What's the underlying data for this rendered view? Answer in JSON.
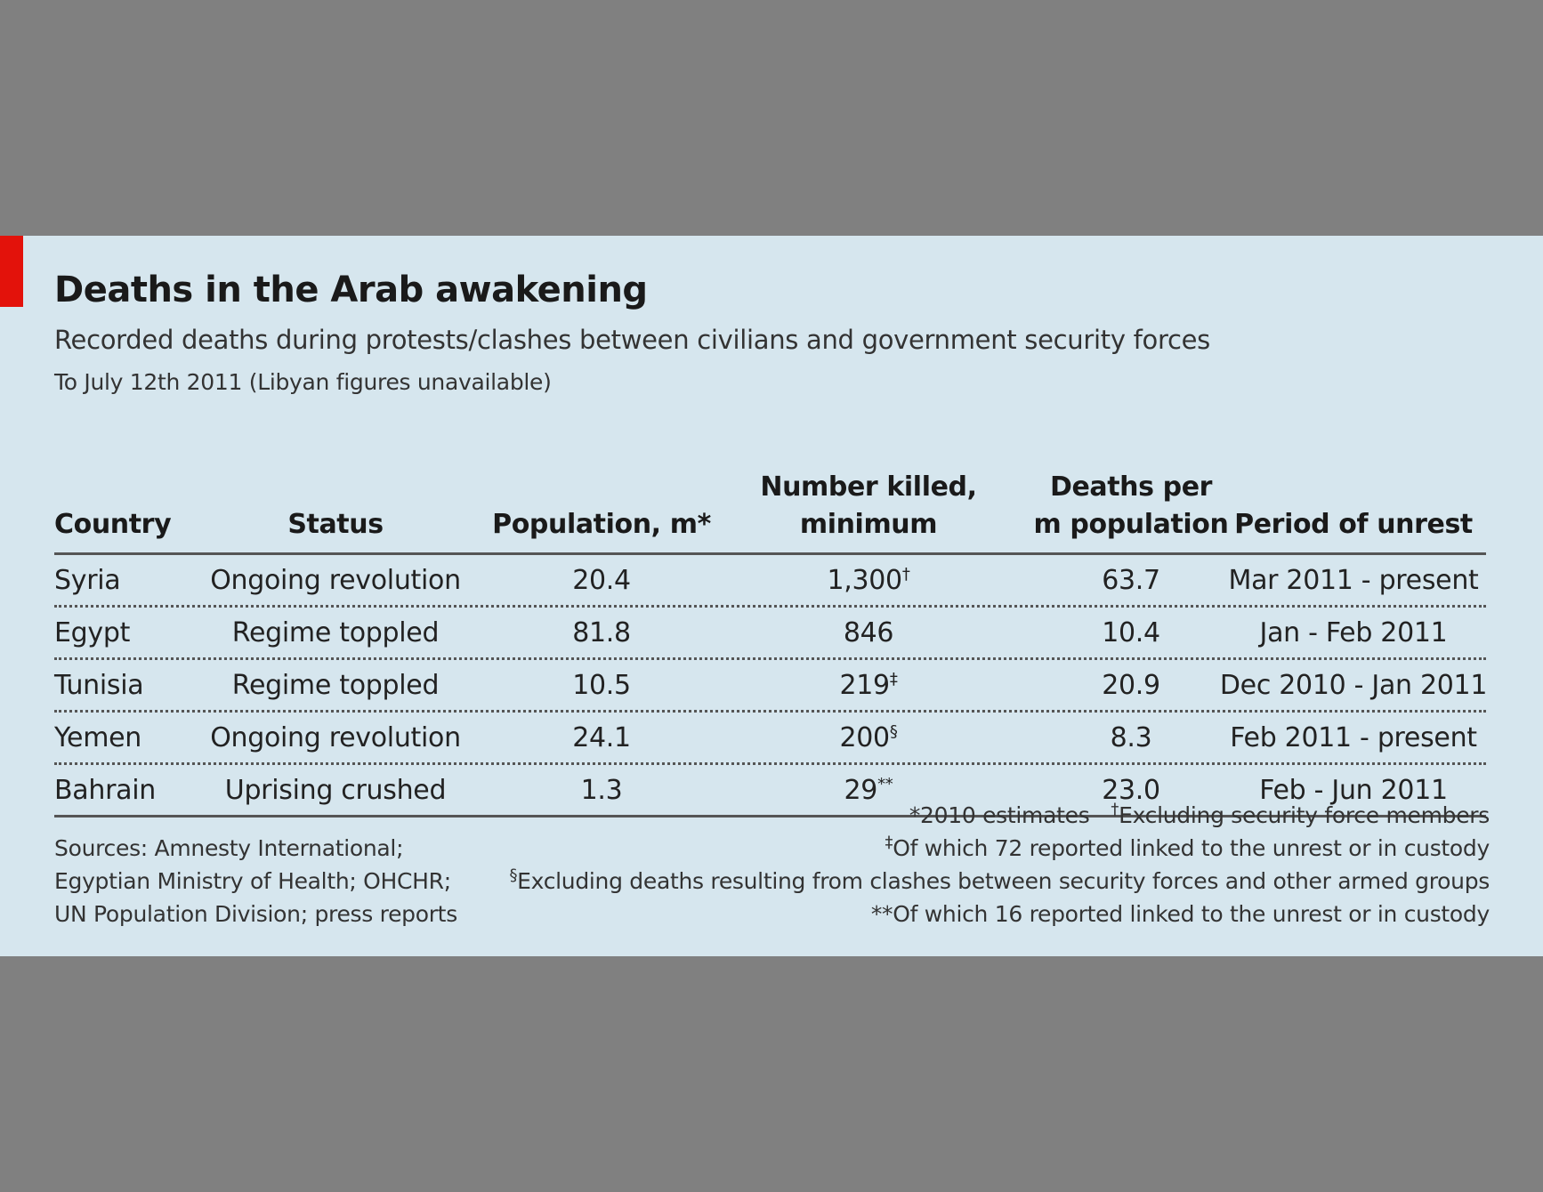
{
  "title": "Deaths in the Arab awakening",
  "subtitle": "Recorded deaths during protests/clashes between civilians and government security forces",
  "note": "To July 12th 2011 (Libyan figures unavailable)",
  "chart_data": {
    "type": "table",
    "columns": [
      "Country",
      "Status",
      "Population, m*",
      "Number killed, minimum",
      "Deaths per m population",
      "Period of unrest"
    ],
    "header_lines": {
      "killed": [
        "Number killed,",
        "minimum"
      ],
      "dpm": [
        "Deaths per",
        "m population"
      ]
    },
    "rows": [
      {
        "country": "Syria",
        "status": "Ongoing revolution",
        "population": "20.4",
        "killed": "1,300",
        "killed_mark": "†",
        "deaths_per_m": "63.7",
        "period": "Mar 2011 - present"
      },
      {
        "country": "Egypt",
        "status": "Regime toppled",
        "population": "81.8",
        "killed": "846",
        "killed_mark": "",
        "deaths_per_m": "10.4",
        "period": "Jan - Feb 2011"
      },
      {
        "country": "Tunisia",
        "status": "Regime toppled",
        "population": "10.5",
        "killed": "219",
        "killed_mark": "‡",
        "deaths_per_m": "20.9",
        "period": "Dec 2010 - Jan 2011"
      },
      {
        "country": "Yemen",
        "status": "Ongoing revolution",
        "population": "24.1",
        "killed": "200",
        "killed_mark": "§",
        "deaths_per_m": "8.3",
        "period": "Feb 2011 - present"
      },
      {
        "country": "Bahrain",
        "status": "Uprising crushed",
        "population": "1.3",
        "killed": "29",
        "killed_mark": "**",
        "deaths_per_m": "23.0",
        "period": "Feb - Jun 2011"
      }
    ]
  },
  "sources": [
    "Sources: Amnesty International;",
    "Egyptian Ministry of Health; OHCHR;",
    "UN Population Division; press reports"
  ],
  "footnotes": {
    "estimates": "*2010 estimates",
    "dagger_mark": "†",
    "dagger": "Excluding security force members",
    "ddagger_mark": "‡",
    "ddagger": "Of which 72 reported linked to the unrest or in custody",
    "section_mark": "§",
    "section": "Excluding deaths resulting from clashes between security forces and other armed groups",
    "doublestar": "**Of which 16 reported linked to the unrest or in custody"
  },
  "colors": {
    "accent": "#e3120b",
    "background": "#d6e6ee",
    "frame": "#808080"
  }
}
